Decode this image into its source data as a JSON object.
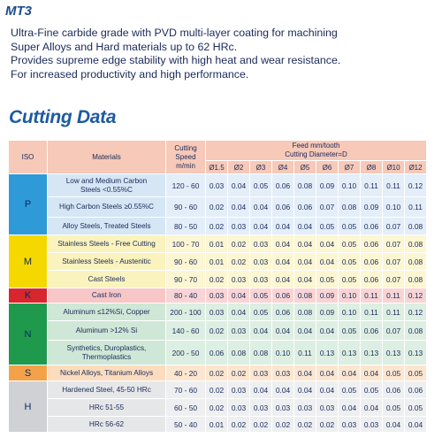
{
  "grade_title": "MT3",
  "description": [
    "Ultra-Fine carbide grade with PVD multi-layer coating for machining",
    "Super Alloys and Hard materials up to 62 HRc.",
    "Provides supreme edge stability with high heat and wear resistance.",
    "For increased productivity and high performance."
  ],
  "section_title": "Cutting Data",
  "table": {
    "headers": {
      "iso": "ISO",
      "materials": "Materials",
      "speed_line1": "Cutting",
      "speed_line2": "Speed",
      "speed_line3": "m/min",
      "feed_line1": "Feed mm/tooth",
      "feed_line2": "Cutting Diameter=D"
    },
    "diameters": [
      "Ø1.5",
      "Ø2",
      "Ø3",
      "Ø4",
      "Ø5",
      "Ø6",
      "Ø7",
      "Ø8",
      "Ø10",
      "Ø12"
    ],
    "groups": [
      {
        "iso": "P",
        "rows": [
          {
            "material_line1": "Low and Medium Carbon",
            "material_line2": "Steels <0.55%C",
            "speed": "120 - 60",
            "feeds": [
              "0.03",
              "0.04",
              "0.05",
              "0.06",
              "0.08",
              "0.09",
              "0.10",
              "0.11",
              "0.11",
              "0.12"
            ]
          },
          {
            "material_line1": "High Carbon Steels ≥0.55%C",
            "material_line2": "",
            "speed": "90 - 60",
            "feeds": [
              "0.02",
              "0.04",
              "0.04",
              "0.06",
              "0.06",
              "0.07",
              "0.08",
              "0.09",
              "0.10",
              "0.11"
            ]
          },
          {
            "material_line1": "Alloy Steels, Treated Steels",
            "material_line2": "",
            "speed": "80 - 50",
            "feeds": [
              "0.02",
              "0.03",
              "0.04",
              "0.04",
              "0.04",
              "0.05",
              "0.05",
              "0.06",
              "0.07",
              "0.08"
            ]
          }
        ]
      },
      {
        "iso": "M",
        "rows": [
          {
            "material_line1": "Stainless Steels - Free Cutting",
            "material_line2": "",
            "speed": "100 - 70",
            "feeds": [
              "0.01",
              "0.02",
              "0.03",
              "0.04",
              "0.04",
              "0.04",
              "0.05",
              "0.06",
              "0.07",
              "0.08"
            ]
          },
          {
            "material_line1": "Stainless Steels - Austenitic",
            "material_line2": "",
            "speed": "90 - 60",
            "feeds": [
              "0.01",
              "0.02",
              "0.03",
              "0.04",
              "0.04",
              "0.04",
              "0.05",
              "0.06",
              "0.07",
              "0.08"
            ]
          },
          {
            "material_line1": "Cast Steels",
            "material_line2": "",
            "speed": "90 - 70",
            "feeds": [
              "0.02",
              "0.03",
              "0.03",
              "0.04",
              "0.04",
              "0.05",
              "0.05",
              "0.06",
              "0.07",
              "0.08"
            ]
          }
        ]
      },
      {
        "iso": "K",
        "rows": [
          {
            "material_line1": "Cast Iron",
            "material_line2": "",
            "speed": "80 - 40",
            "feeds": [
              "0.03",
              "0.04",
              "0.05",
              "0.06",
              "0.08",
              "0.09",
              "0.10",
              "0.11",
              "0.11",
              "0.12"
            ]
          }
        ]
      },
      {
        "iso": "N",
        "rows": [
          {
            "material_line1": "Aluminum ≤12%Si, Copper",
            "material_line2": "",
            "speed": "200 - 100",
            "feeds": [
              "0.03",
              "0.04",
              "0.05",
              "0.06",
              "0.08",
              "0.09",
              "0.10",
              "0.11",
              "0.11",
              "0.12"
            ]
          },
          {
            "material_line1": "Aluminum >12% Si",
            "material_line2": "",
            "speed": "140 - 60",
            "feeds": [
              "0.02",
              "0.03",
              "0.04",
              "0.04",
              "0.04",
              "0.04",
              "0.05",
              "0.06",
              "0.07",
              "0.08"
            ]
          },
          {
            "material_line1": "Synthetics, Duroplastics,",
            "material_line2": "Thermoplastics",
            "speed": "200 - 50",
            "feeds": [
              "0.06",
              "0.08",
              "0.08",
              "0.10",
              "0.11",
              "0.13",
              "0.13",
              "0.13",
              "0.13",
              "0.13"
            ]
          }
        ]
      },
      {
        "iso": "S",
        "rows": [
          {
            "material_line1": "Nickel Alloys, Titanium Alloys",
            "material_line2": "",
            "speed": "40 - 20",
            "feeds": [
              "0.02",
              "0.02",
              "0.03",
              "0.03",
              "0.04",
              "0.04",
              "0.04",
              "0.04",
              "0.05",
              "0.05"
            ]
          }
        ]
      },
      {
        "iso": "H",
        "rows": [
          {
            "material_line1": "Hardened Steel, 45-50 HRc",
            "material_line2": "",
            "speed": "70 - 60",
            "feeds": [
              "0.02",
              "0.03",
              "0.04",
              "0.04",
              "0.04",
              "0.04",
              "0.05",
              "0.05",
              "0.06",
              "0.06"
            ]
          },
          {
            "material_line1": "HRc 51-55",
            "material_line2": "",
            "speed": "60 - 50",
            "feeds": [
              "0.02",
              "0.03",
              "0.03",
              "0.03",
              "0.03",
              "0.03",
              "0.04",
              "0.04",
              "0.05",
              "0.05"
            ]
          },
          {
            "material_line1": "HRc 56-62",
            "material_line2": "",
            "speed": "50 - 40",
            "feeds": [
              "0.01",
              "0.02",
              "0.02",
              "0.02",
              "0.02",
              "0.02",
              "0.03",
              "0.03",
              "0.04",
              "0.04"
            ]
          }
        ]
      }
    ]
  }
}
